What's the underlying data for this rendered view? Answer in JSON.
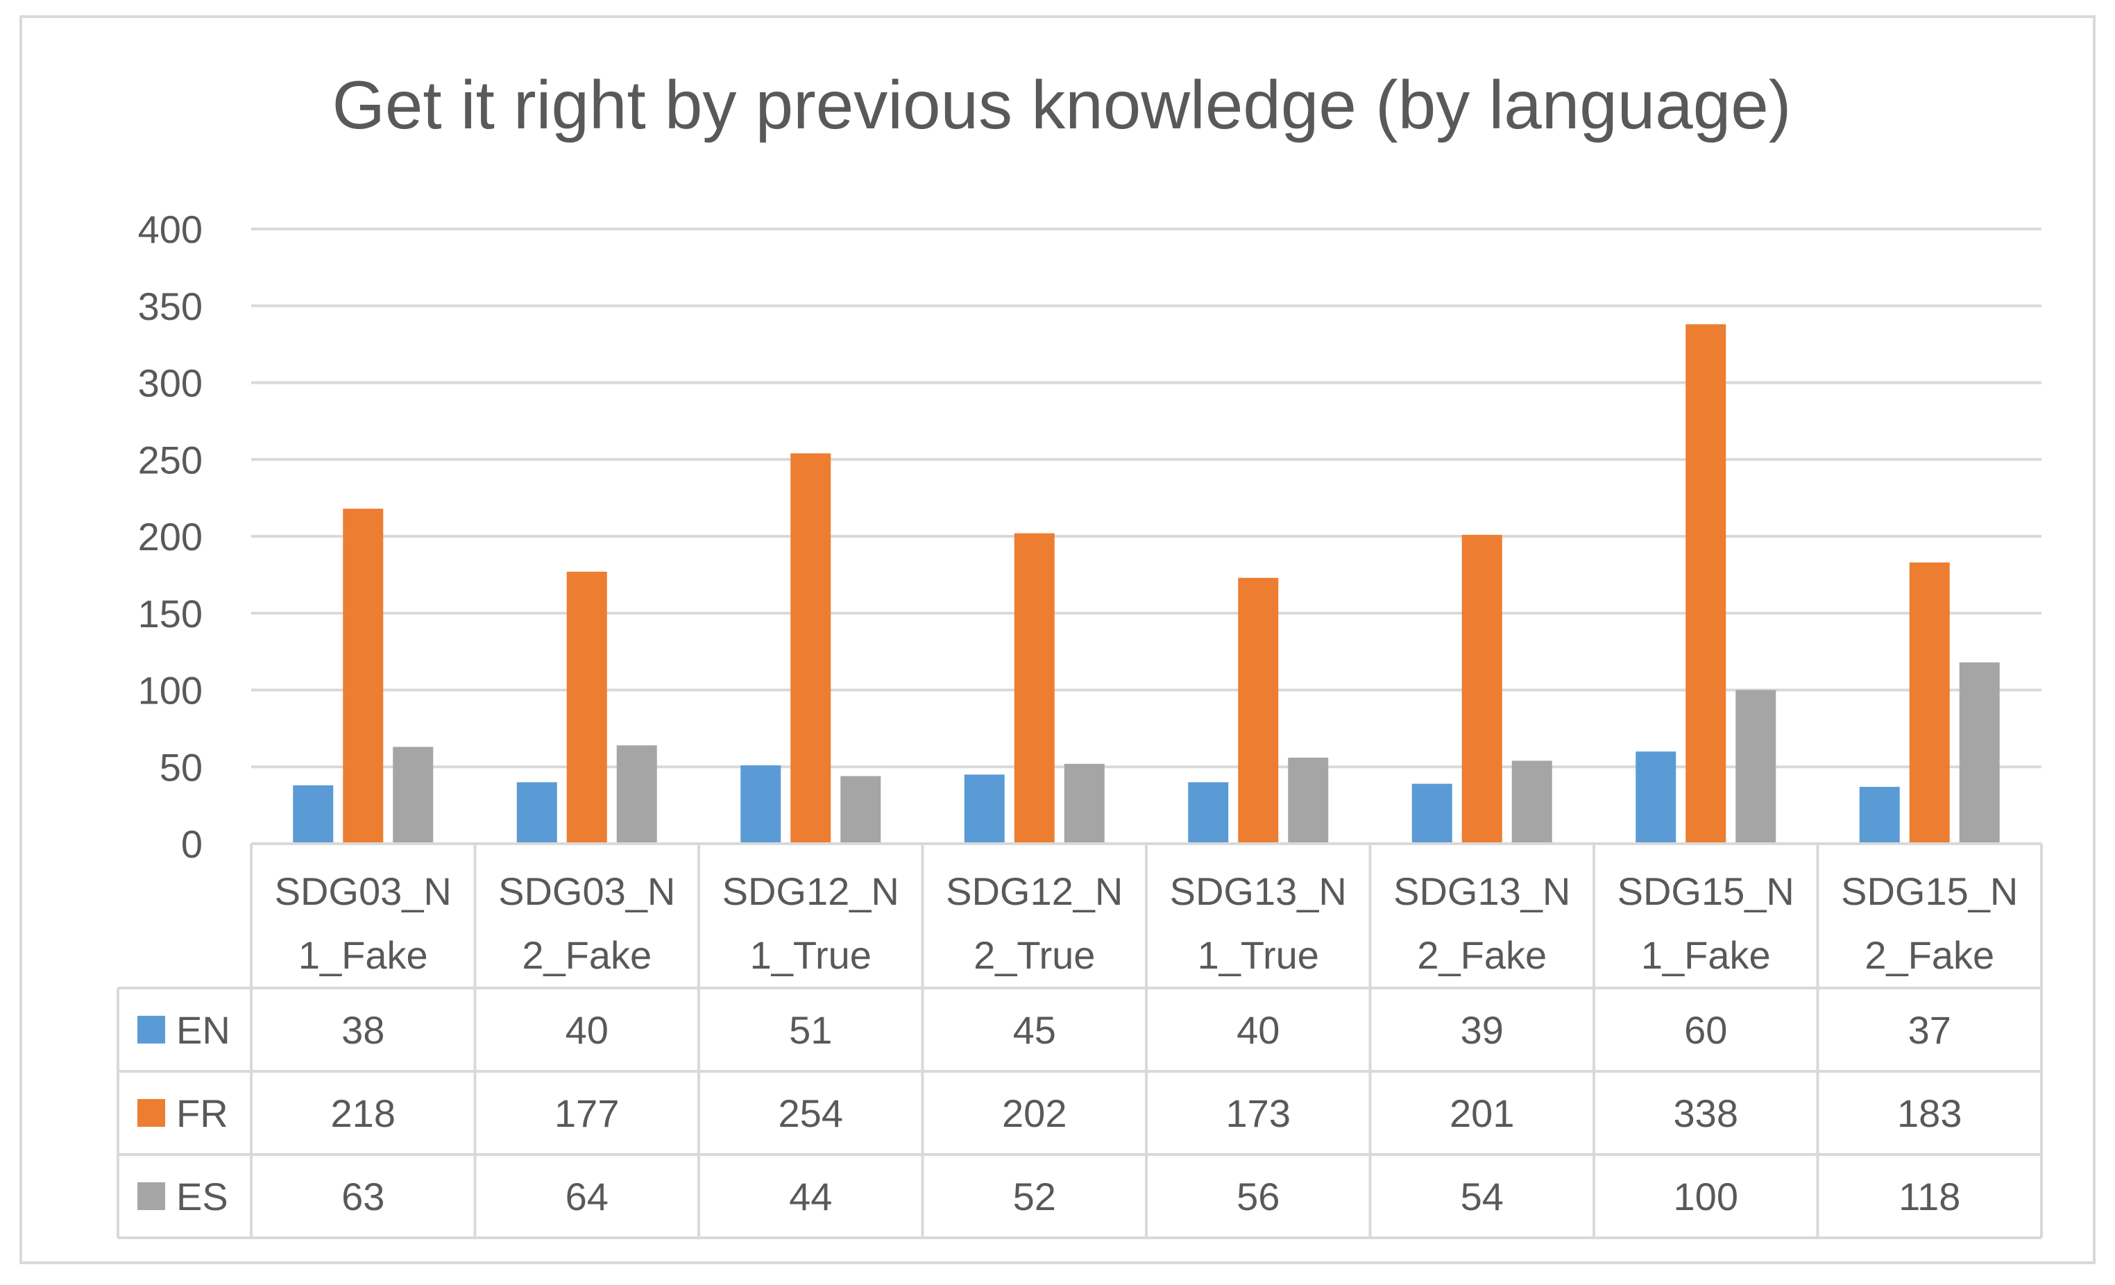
{
  "chart_data": {
    "type": "bar",
    "title": "Get it right by previous knowledge (by language)",
    "categories": [
      [
        "SDG03_N",
        "1_Fake"
      ],
      [
        "SDG03_N",
        "2_Fake"
      ],
      [
        "SDG12_N",
        "1_True"
      ],
      [
        "SDG12_N",
        "2_True"
      ],
      [
        "SDG13_N",
        "1_True"
      ],
      [
        "SDG13_N",
        "2_Fake"
      ],
      [
        "SDG15_N",
        "1_Fake"
      ],
      [
        "SDG15_N",
        "2_Fake"
      ]
    ],
    "series": [
      {
        "name": "EN",
        "color": "#5b9bd5",
        "values": [
          38,
          40,
          51,
          45,
          40,
          39,
          60,
          37
        ]
      },
      {
        "name": "FR",
        "color": "#ed7d31",
        "values": [
          218,
          177,
          254,
          202,
          173,
          201,
          338,
          183
        ]
      },
      {
        "name": "ES",
        "color": "#a5a5a5",
        "values": [
          63,
          64,
          44,
          52,
          56,
          54,
          100,
          118
        ]
      }
    ],
    "ylim": [
      0,
      400
    ],
    "yticks": [
      0,
      50,
      100,
      150,
      200,
      250,
      300,
      350,
      400
    ],
    "grid": true,
    "legend": "data-table",
    "data_table": true
  }
}
